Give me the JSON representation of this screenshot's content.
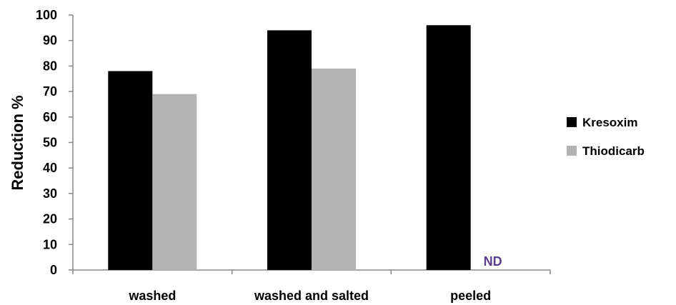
{
  "chart_data": {
    "type": "bar",
    "categories": [
      "washed",
      "washed and salted",
      "peeled"
    ],
    "series": [
      {
        "name": "Kresoxim",
        "values": [
          78,
          94,
          96
        ],
        "color": "#000000"
      },
      {
        "name": "Thiodicarb",
        "values": [
          69,
          79,
          null
        ],
        "color": "#b3b3b3"
      }
    ],
    "annotations": [
      {
        "text": "ND",
        "category": "peeled",
        "series": "Thiodicarb",
        "color": "#5a3f8c"
      }
    ],
    "title": "",
    "xlabel": "",
    "ylabel": "Reduction %",
    "ylim": [
      0,
      100
    ],
    "yticks": [
      0,
      10,
      20,
      30,
      40,
      50,
      60,
      70,
      80,
      90,
      100
    ],
    "grid": false,
    "legend_position": "right"
  }
}
